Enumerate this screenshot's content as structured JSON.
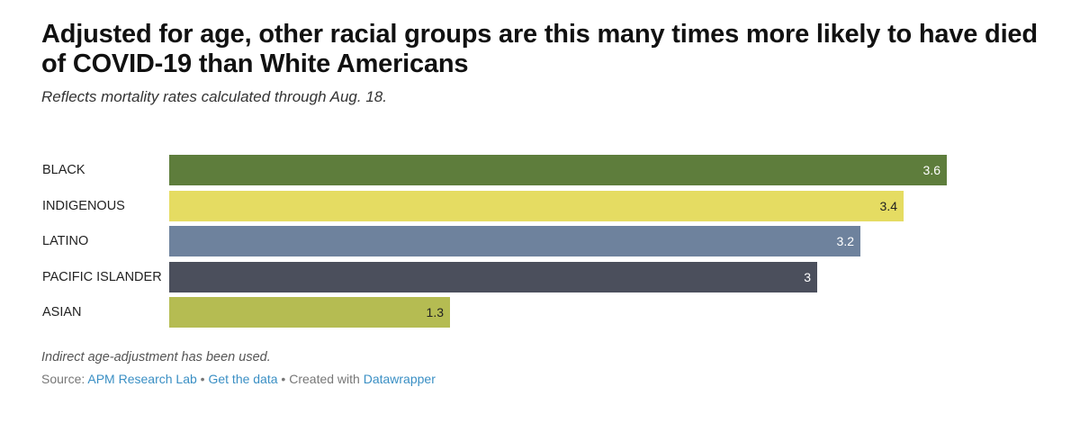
{
  "chart_data": {
    "type": "bar",
    "orientation": "horizontal",
    "title": "Adjusted for age, other racial groups are this many times more likely to have died of COVID-19 than White Americans",
    "subtitle": "Reflects mortality rates calculated through Aug. 18.",
    "xlim": [
      0,
      3.6
    ],
    "categories": [
      "BLACK",
      "INDIGENOUS",
      "LATINO",
      "PACIFIC ISLANDER",
      "ASIAN"
    ],
    "values": [
      3.6,
      3.4,
      3.2,
      3,
      1.3
    ],
    "value_labels": [
      "3.6",
      "3.4",
      "3.2",
      "3",
      "1.3"
    ],
    "colors": [
      "#5e7d3c",
      "#e5dc62",
      "#6e829d",
      "#4b4f5c",
      "#b5bc52"
    ],
    "label_colors": [
      "#ffffff",
      "#222222",
      "#ffffff",
      "#ffffff",
      "#222222"
    ],
    "notes": "Indirect age-adjustment has been used.",
    "grid": false,
    "legend": "none"
  },
  "footer": {
    "source_prefix": "Source:",
    "source_link": "APM Research Lab",
    "separator1": "•",
    "data_link": "Get the data",
    "separator2": "•",
    "created_text": "Created with",
    "tool_link": "Datawrapper"
  }
}
